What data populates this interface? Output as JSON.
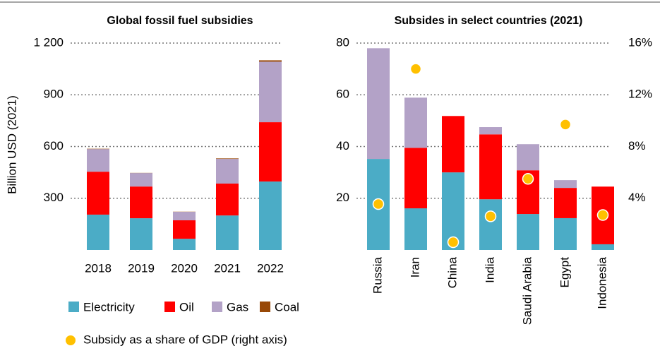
{
  "chart_data": [
    {
      "type": "bar",
      "stacked": true,
      "title": "Global fossil fuel subsidies",
      "ylabel": "Billion USD (2021)",
      "categories": [
        "2018",
        "2019",
        "2020",
        "2021",
        "2022"
      ],
      "series": [
        {
          "name": "Electricity",
          "color": "#4bacc6",
          "values": [
            205,
            184,
            65,
            200,
            397
          ]
        },
        {
          "name": "Oil",
          "color": "#ff0000",
          "values": [
            249,
            184,
            107,
            185,
            344
          ]
        },
        {
          "name": "Gas",
          "color": "#b3a2c7",
          "values": [
            131,
            78,
            49,
            143,
            351
          ]
        },
        {
          "name": "Coal",
          "color": "#984807",
          "values": [
            2,
            1,
            1,
            3,
            8
          ]
        }
      ],
      "ylim": [
        0,
        1200
      ],
      "yticks": [
        300,
        600,
        900,
        {
          "value": 1200,
          "label": "1 200"
        }
      ],
      "grid": true
    },
    {
      "type": "bar",
      "stacked": true,
      "title": "Subsides in select countries (2021)",
      "categories": [
        "Russia",
        "Iran",
        "China",
        "India",
        "Saudi Arabia",
        "Egypt",
        "Indonesia"
      ],
      "series": [
        {
          "color": "#4bacc6",
          "values": [
            35.2,
            16.1,
            30,
            19.6,
            13.9,
            12.3,
            2.2
          ]
        },
        {
          "color": "#ff0000",
          "values": [
            0,
            23.4,
            21.8,
            25.1,
            16.9,
            11.7,
            22.3
          ]
        },
        {
          "color": "#b3a2c7",
          "values": [
            42.8,
            19.4,
            0,
            2.8,
            10.1,
            3,
            0
          ]
        },
        {
          "name": "Subsidy as a share of GDP (right axis)",
          "type": "scatter",
          "axis": "y2",
          "color": "#ffc000",
          "values": [
            3.55,
            14,
            0.6,
            2.6,
            5.5,
            9.7,
            2.7
          ]
        }
      ],
      "ylim": [
        0,
        80
      ],
      "yticks": [
        20,
        40,
        60,
        80
      ],
      "y2lim": [
        0,
        16
      ],
      "y2ticks": [
        {
          "value": 4,
          "label": "4%"
        },
        {
          "value": 8,
          "label": "8%"
        },
        {
          "value": 12,
          "label": "12%"
        },
        {
          "value": 16,
          "label": "16%"
        }
      ],
      "grid": true
    }
  ]
}
